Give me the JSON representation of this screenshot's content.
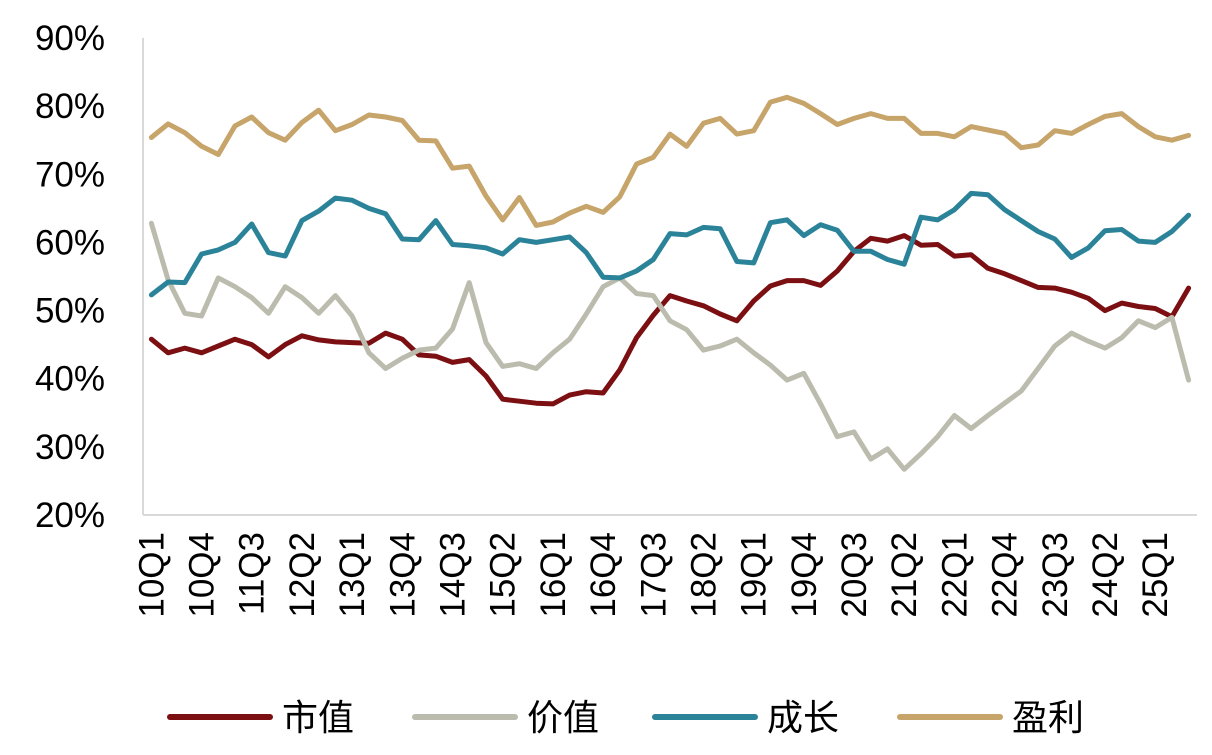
{
  "chart_data": {
    "type": "line",
    "title": "",
    "xlabel": "",
    "ylabel": "",
    "ylim": [
      20,
      90
    ],
    "yticks": [
      "20%",
      "30%",
      "40%",
      "50%",
      "60%",
      "70%",
      "80%",
      "90%"
    ],
    "x_tick_labels": [
      "10Q1",
      "10Q4",
      "11Q3",
      "12Q2",
      "13Q1",
      "13Q4",
      "14Q3",
      "15Q2",
      "16Q1",
      "16Q4",
      "17Q3",
      "18Q2",
      "19Q1",
      "19Q4",
      "20Q3",
      "21Q2",
      "22Q1",
      "22Q4",
      "23Q3",
      "24Q2",
      "25Q1"
    ],
    "x": [
      "10Q1",
      "10Q2",
      "10Q3",
      "10Q4",
      "11Q1",
      "11Q2",
      "11Q3",
      "11Q4",
      "12Q1",
      "12Q2",
      "12Q3",
      "12Q4",
      "13Q1",
      "13Q2",
      "13Q3",
      "13Q4",
      "14Q1",
      "14Q2",
      "14Q3",
      "14Q4",
      "15Q1",
      "15Q2",
      "15Q3",
      "15Q4",
      "16Q1",
      "16Q2",
      "16Q3",
      "16Q4",
      "17Q1",
      "17Q2",
      "17Q3",
      "17Q4",
      "18Q1",
      "18Q2",
      "18Q3",
      "18Q4",
      "19Q1",
      "19Q2",
      "19Q3",
      "19Q4",
      "20Q1",
      "20Q2",
      "20Q3",
      "20Q4",
      "21Q1",
      "21Q2",
      "21Q3",
      "21Q4",
      "22Q1",
      "22Q2",
      "22Q3",
      "22Q4",
      "23Q1",
      "23Q2",
      "23Q3",
      "23Q4",
      "24Q1",
      "24Q2",
      "24Q3",
      "24Q4",
      "25Q1",
      "25Q2",
      "25Q3"
    ],
    "legend_position": "bottom",
    "grid": false,
    "series": [
      {
        "name": "市值",
        "color": "#7b0f12",
        "values": [
          45.8,
          43.8,
          44.5,
          43.8,
          44.8,
          45.8,
          45.0,
          43.2,
          45.0,
          46.3,
          45.7,
          45.4,
          45.3,
          45.2,
          46.7,
          45.8,
          43.5,
          43.3,
          42.4,
          42.8,
          40.4,
          37.0,
          36.7,
          36.4,
          36.3,
          37.6,
          38.1,
          37.9,
          41.3,
          46.0,
          49.3,
          52.2,
          51.4,
          50.7,
          49.5,
          48.5,
          51.4,
          53.6,
          54.4,
          54.4,
          53.7,
          55.8,
          58.7,
          60.6,
          60.2,
          61.0,
          59.6,
          59.7,
          58.0,
          58.2,
          56.2,
          55.4,
          54.4,
          53.4,
          53.3,
          52.7,
          51.8,
          50.0,
          51.1,
          50.6,
          50.3,
          49.1,
          53.3
        ]
      },
      {
        "name": "价值",
        "color": "#bcbcae",
        "values": [
          62.8,
          54.5,
          49.6,
          49.2,
          54.8,
          53.5,
          51.9,
          49.6,
          53.5,
          51.9,
          49.6,
          52.2,
          49.2,
          43.8,
          41.5,
          43.0,
          44.2,
          44.5,
          47.3,
          54.1,
          45.3,
          41.8,
          42.2,
          41.5,
          43.8,
          45.8,
          49.5,
          53.5,
          54.8,
          52.5,
          52.2,
          48.5,
          47.2,
          44.2,
          44.8,
          45.8,
          43.8,
          42.0,
          39.8,
          40.8,
          36.3,
          31.5,
          32.2,
          28.2,
          29.7,
          26.7,
          29.0,
          31.5,
          34.6,
          32.7,
          34.6,
          36.4,
          38.2,
          41.5,
          44.8,
          46.7,
          45.5,
          44.5,
          46.0,
          48.5,
          47.5,
          49.0,
          39.8
        ]
      },
      {
        "name": "成长",
        "color": "#2b8399",
        "values": [
          52.3,
          54.2,
          54.1,
          58.3,
          58.9,
          60.0,
          62.7,
          58.5,
          58.0,
          63.2,
          64.6,
          66.5,
          66.2,
          65.0,
          64.2,
          60.5,
          60.4,
          63.2,
          59.7,
          59.5,
          59.2,
          58.3,
          60.4,
          60.0,
          60.4,
          60.8,
          58.5,
          54.9,
          54.8,
          55.8,
          57.5,
          61.3,
          61.1,
          62.2,
          62.0,
          57.2,
          57.0,
          62.9,
          63.3,
          61.0,
          62.6,
          61.8,
          58.7,
          58.7,
          57.5,
          56.8,
          63.7,
          63.3,
          64.8,
          67.2,
          67.0,
          64.8,
          63.2,
          61.6,
          60.5,
          57.8,
          59.2,
          61.7,
          61.9,
          60.2,
          60.0,
          61.6,
          64.0
        ]
      },
      {
        "name": "盈利",
        "color": "#c6a46a",
        "values": [
          75.4,
          77.4,
          76.1,
          74.1,
          72.9,
          77.1,
          78.4,
          76.1,
          75.0,
          77.6,
          79.4,
          76.4,
          77.3,
          78.7,
          78.4,
          77.9,
          75.0,
          74.9,
          70.9,
          71.2,
          66.8,
          63.3,
          66.6,
          62.5,
          63.0,
          64.3,
          65.3,
          64.4,
          66.7,
          71.5,
          72.5,
          75.9,
          74.1,
          77.5,
          78.2,
          75.9,
          76.4,
          80.6,
          81.3,
          80.4,
          78.9,
          77.3,
          78.2,
          78.9,
          78.2,
          78.2,
          76.0,
          76.0,
          75.5,
          77.0,
          76.5,
          76.0,
          73.9,
          74.3,
          76.4,
          76.0,
          77.3,
          78.5,
          78.9,
          77.0,
          75.5,
          75.0,
          75.7
        ]
      }
    ]
  }
}
